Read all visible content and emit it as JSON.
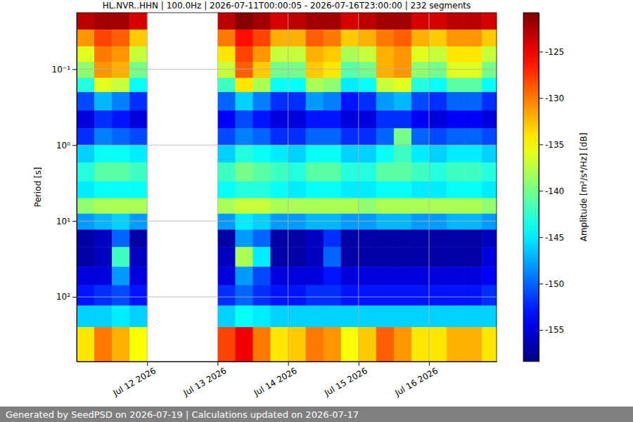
{
  "chart_data": {
    "type": "heatmap",
    "title": "HL.NVR..HHN | 100.0Hz | 2026-07-11T00:00:05 - 2026-07-16T23:00:00 | 232 segments",
    "y_label": "Period [s]",
    "footer": "Generated by SeedPSD on 2026-07-19 | Calculations updated on 2026-07-17",
    "log": "y",
    "grid": true,
    "xlim": [
      "2026-07-11T00:00:05",
      "2026-07-16T23:00:00"
    ],
    "xticks": [
      {
        "value": "2026-07-12T00:00:00",
        "label": "Jul 12 2026"
      },
      {
        "value": "2026-07-13T00:00:00",
        "label": "Jul 13 2026"
      },
      {
        "value": "2026-07-14T00:00:00",
        "label": "Jul 14 2026"
      },
      {
        "value": "2026-07-15T00:00:00",
        "label": "Jul 15 2026"
      },
      {
        "value": "2026-07-16T00:00:00",
        "label": "Jul 16 2026"
      }
    ],
    "ylim": [
      0.018,
      710
    ],
    "yticks": [
      {
        "value": 0.1,
        "label": "10⁻¹"
      },
      {
        "value": 1,
        "label": "10⁰"
      },
      {
        "value": 10,
        "label": "10¹"
      },
      {
        "value": 100,
        "label": "10²"
      }
    ],
    "x": [
      "2026-07-11T00:00:05",
      "2026-07-11T06:00:00",
      "2026-07-11T12:00:00",
      "2026-07-11T18:00:00",
      "2026-07-12T00:00:00",
      "2026-07-12T06:00:00",
      "2026-07-12T12:00:00",
      "2026-07-12T18:00:00",
      "2026-07-13T00:00:00",
      "2026-07-13T06:00:00",
      "2026-07-13T12:00:00",
      "2026-07-13T18:00:00",
      "2026-07-14T00:00:00",
      "2026-07-14T06:00:00",
      "2026-07-14T12:00:00",
      "2026-07-14T18:00:00",
      "2026-07-15T00:00:00",
      "2026-07-15T06:00:00",
      "2026-07-15T12:00:00",
      "2026-07-15T18:00:00",
      "2026-07-16T00:00:00",
      "2026-07-16T06:00:00",
      "2026-07-16T12:00:00",
      "2026-07-16T18:00:00"
    ],
    "y": [
      0.018,
      0.03,
      0.05,
      0.08,
      0.13,
      0.2,
      0.35,
      0.6,
      1,
      1.7,
      3,
      5,
      8,
      13,
      22,
      40,
      70,
      130,
      250,
      710
    ],
    "cells": [
      [
        -123,
        -122,
        -122,
        -124,
        null,
        null,
        null,
        null,
        -123,
        -121,
        -122,
        -124,
        -123,
        -122,
        -122,
        -124,
        -123,
        -122,
        -122,
        -124,
        -124,
        -123,
        -123,
        -124
      ],
      [
        -131,
        -128,
        -129,
        -133,
        null,
        null,
        null,
        null,
        -130,
        -126,
        -128,
        -132,
        -132,
        -129,
        -130,
        -133,
        -132,
        -130,
        -129,
        -132,
        -133,
        -131,
        -131,
        -133
      ],
      [
        -136,
        -130,
        -131,
        -137,
        null,
        null,
        null,
        null,
        -134,
        -128,
        -131,
        -137,
        -137,
        -132,
        -133,
        -138,
        -137,
        -132,
        -131,
        -136,
        -137,
        -134,
        -134,
        -137
      ],
      [
        -139,
        -131,
        -132,
        -140,
        null,
        null,
        null,
        null,
        -137,
        -129,
        -133,
        -140,
        -140,
        -133,
        -134,
        -141,
        -140,
        -132,
        -131,
        -139,
        -140,
        -136,
        -136,
        -140
      ],
      [
        -143,
        -136,
        -137,
        -144,
        null,
        null,
        null,
        null,
        -142,
        -134,
        -138,
        -144,
        -144,
        -138,
        -139,
        -145,
        -144,
        -137,
        -136,
        -143,
        -144,
        -141,
        -141,
        -144
      ],
      [
        -151,
        -147,
        -149,
        -152,
        null,
        null,
        null,
        null,
        -150,
        -146,
        -149,
        -152,
        -152,
        -148,
        -149,
        -153,
        -152,
        -148,
        -147,
        -151,
        -152,
        -150,
        -150,
        -152
      ],
      [
        -155,
        -152,
        -153,
        -155,
        null,
        null,
        null,
        null,
        -154,
        -151,
        -153,
        -155,
        -155,
        -153,
        -153,
        -155,
        -155,
        -152,
        -152,
        -154,
        -155,
        -154,
        -154,
        -155
      ],
      [
        -152,
        -149,
        -150,
        -151,
        null,
        null,
        null,
        null,
        -151,
        -149,
        -150,
        -152,
        -152,
        -150,
        -150,
        -152,
        -152,
        -150,
        -140,
        -150,
        -151,
        -150,
        -150,
        -151
      ],
      [
        -146,
        -144,
        -144,
        -145,
        null,
        null,
        null,
        null,
        -146,
        -143,
        -144,
        -145,
        -146,
        -144,
        -144,
        -146,
        -146,
        -144,
        -142,
        -145,
        -146,
        -145,
        -145,
        -146
      ],
      [
        -143,
        -141,
        -141,
        -142,
        null,
        null,
        null,
        null,
        -142,
        -140,
        -141,
        -142,
        -143,
        -141,
        -141,
        -143,
        -143,
        -141,
        -141,
        -142,
        -143,
        -142,
        -142,
        -143
      ],
      [
        -145,
        -144,
        -144,
        -144,
        null,
        null,
        null,
        null,
        -144,
        -143,
        -143,
        -144,
        -145,
        -144,
        -144,
        -145,
        -145,
        -144,
        -144,
        -145,
        -145,
        -144,
        -144,
        -145
      ],
      [
        -139,
        -138,
        -138,
        -138,
        null,
        null,
        null,
        null,
        -138,
        -137,
        -137,
        -138,
        -138,
        -138,
        -138,
        -138,
        -139,
        -138,
        -138,
        -138,
        -138,
        -138,
        -138,
        -139
      ],
      [
        -148,
        -147,
        -146,
        -148,
        null,
        null,
        null,
        null,
        -148,
        -145,
        -146,
        -148,
        -148,
        -147,
        -147,
        -148,
        -148,
        -147,
        -147,
        -148,
        -148,
        -147,
        -147,
        -148
      ],
      [
        -157,
        -156,
        -150,
        -157,
        null,
        null,
        null,
        null,
        -157,
        -148,
        -150,
        -157,
        -157,
        -156,
        -152,
        -157,
        -157,
        -157,
        -157,
        -157,
        -157,
        -157,
        -157,
        -156
      ],
      [
        -157,
        -156,
        -142,
        -156,
        null,
        null,
        null,
        null,
        -156,
        -138,
        -145,
        -157,
        -157,
        -156,
        -150,
        -157,
        -157,
        -157,
        -157,
        -157,
        -157,
        -157,
        -157,
        -155
      ],
      [
        -155,
        -155,
        -148,
        -155,
        null,
        null,
        null,
        null,
        -155,
        -148,
        -151,
        -155,
        -155,
        -155,
        -153,
        -155,
        -155,
        -155,
        -155,
        -155,
        -155,
        -155,
        -155,
        -154
      ],
      [
        -153,
        -152,
        -151,
        -153,
        null,
        null,
        null,
        null,
        -152,
        -150,
        -152,
        -153,
        -153,
        -152,
        -152,
        -153,
        -153,
        -153,
        -153,
        -153,
        -153,
        -153,
        -153,
        -152
      ],
      [
        -146,
        -146,
        -145,
        -146,
        null,
        null,
        null,
        null,
        -146,
        -144,
        -145,
        -146,
        -146,
        -146,
        -146,
        -146,
        -146,
        -146,
        -146,
        -146,
        -146,
        -146,
        -146,
        -146
      ],
      [
        -134,
        -130,
        -132,
        -135,
        null,
        null,
        null,
        null,
        -128,
        -125,
        -130,
        -134,
        -133,
        -130,
        -131,
        -135,
        -133,
        -129,
        -131,
        -134,
        -134,
        -132,
        -132,
        -134
      ]
    ],
    "colorbar": {
      "label": "Amplitude [m²/s⁴/Hz] [dB]",
      "lim": [
        -158.4,
        -120.8
      ],
      "ticks": [
        -125,
        -130,
        -135,
        -140,
        -145,
        -150,
        -155
      ]
    }
  }
}
